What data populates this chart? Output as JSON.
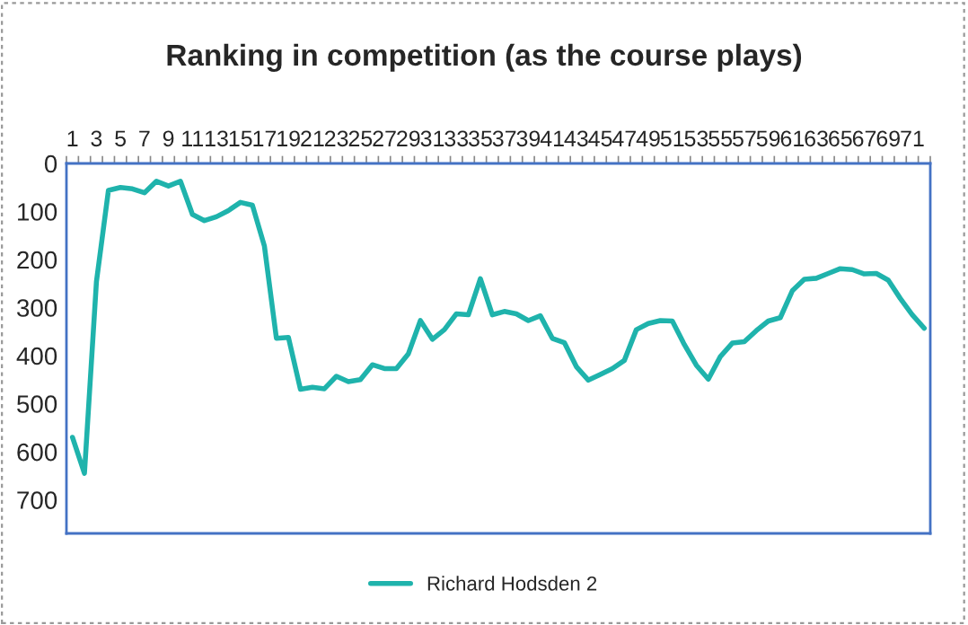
{
  "chart_data": {
    "type": "line",
    "title": "Ranking in competition (as the course plays)",
    "categories": [
      "1",
      null,
      "3",
      null,
      "5",
      null,
      "7",
      null,
      "9",
      null,
      "11",
      null,
      "13",
      null,
      "15",
      null,
      "17",
      null,
      "19",
      null,
      "21",
      null,
      "23",
      null,
      "25",
      null,
      "27",
      null,
      "29",
      null,
      "31",
      null,
      "33",
      null,
      "35",
      null,
      "37",
      null,
      "39",
      null,
      "41",
      null,
      "43",
      null,
      "45",
      null,
      "47",
      null,
      "49",
      null,
      "51",
      null,
      "53",
      null,
      "55",
      null,
      "57",
      null,
      "59",
      null,
      "61",
      null,
      "63",
      null,
      "65",
      null,
      "67",
      null,
      "69",
      null,
      "71",
      null
    ],
    "series": [
      {
        "name": "Richard Hodsden 2",
        "color": "#1fb3ac",
        "values": [
          570,
          645,
          246,
          56,
          50,
          53,
          61,
          37,
          47,
          37,
          106,
          119,
          111,
          98,
          81,
          87,
          172,
          364,
          362,
          470,
          466,
          469,
          443,
          454,
          450,
          419,
          427,
          427,
          396,
          327,
          366,
          346,
          313,
          315,
          240,
          315,
          308,
          313,
          327,
          317,
          364,
          373,
          423,
          451,
          439,
          427,
          410,
          346,
          333,
          327,
          328,
          377,
          420,
          449,
          402,
          374,
          371,
          348,
          328,
          321,
          265,
          241,
          239,
          229,
          219,
          221,
          230,
          229,
          243,
          281,
          315,
          343
        ]
      }
    ],
    "ylim": [
      770,
      0
    ],
    "yticks": [
      0,
      100,
      200,
      300,
      400,
      500,
      600,
      700
    ],
    "grid": false,
    "legend": "bottom",
    "marker": "none",
    "line_style": "solid"
  }
}
